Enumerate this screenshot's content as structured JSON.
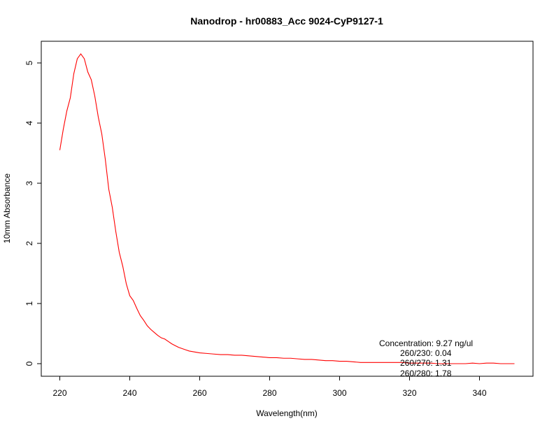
{
  "chart_data": {
    "type": "line",
    "title": "Nanodrop - hr00883_Acc 9024-CyP9127-1",
    "xlabel": "Wavelength(nm)",
    "ylabel": "10mm Absorbance",
    "xlim": [
      220,
      350
    ],
    "ylim": [
      0,
      5.15
    ],
    "x_ticks": [
      "220",
      "240",
      "260",
      "280",
      "300",
      "320",
      "340"
    ],
    "y_ticks": [
      "0",
      "1",
      "2",
      "3",
      "4",
      "5"
    ],
    "grid": false,
    "series": [
      {
        "color": "#ff0000",
        "x": [
          220,
          221,
          222,
          223,
          224,
          225,
          226,
          227,
          228,
          229,
          230,
          231,
          232,
          233,
          234,
          235,
          236,
          237,
          238,
          239,
          240,
          241,
          242,
          243,
          244,
          245,
          246,
          247,
          248,
          249,
          250,
          251,
          252,
          253,
          254,
          255,
          256,
          257,
          258,
          259,
          260,
          262,
          264,
          266,
          268,
          270,
          272,
          274,
          276,
          278,
          280,
          282,
          284,
          286,
          288,
          290,
          292,
          294,
          296,
          298,
          300,
          302,
          304,
          306,
          308,
          310,
          312,
          314,
          316,
          318,
          320,
          322,
          324,
          326,
          328,
          330,
          332,
          334,
          336,
          338,
          340,
          342,
          344,
          346,
          348,
          350
        ],
        "y": [
          3.55,
          3.9,
          4.2,
          4.42,
          4.82,
          5.07,
          5.15,
          5.07,
          4.85,
          4.72,
          4.45,
          4.1,
          3.82,
          3.4,
          2.9,
          2.6,
          2.2,
          1.85,
          1.62,
          1.33,
          1.13,
          1.05,
          0.92,
          0.8,
          0.72,
          0.63,
          0.57,
          0.52,
          0.47,
          0.43,
          0.41,
          0.37,
          0.33,
          0.3,
          0.27,
          0.25,
          0.23,
          0.21,
          0.2,
          0.19,
          0.18,
          0.17,
          0.16,
          0.15,
          0.15,
          0.14,
          0.14,
          0.13,
          0.12,
          0.11,
          0.1,
          0.1,
          0.09,
          0.09,
          0.08,
          0.07,
          0.07,
          0.06,
          0.05,
          0.05,
          0.04,
          0.04,
          0.03,
          0.02,
          0.02,
          0.02,
          0.02,
          0.02,
          0.02,
          0.02,
          0.01,
          0.01,
          0.01,
          0.01,
          0.0,
          0.0,
          0.0,
          0.0,
          0.0,
          0.01,
          0.0,
          0.01,
          0.01,
          0.0,
          0.0,
          0.0
        ]
      }
    ],
    "annotations": {
      "concentration": "Concentration: 9.27 ng/ul",
      "r230": "260/230: 0.04",
      "r270": "260/270: 1.31",
      "r280": "260/280: 1.78"
    }
  }
}
